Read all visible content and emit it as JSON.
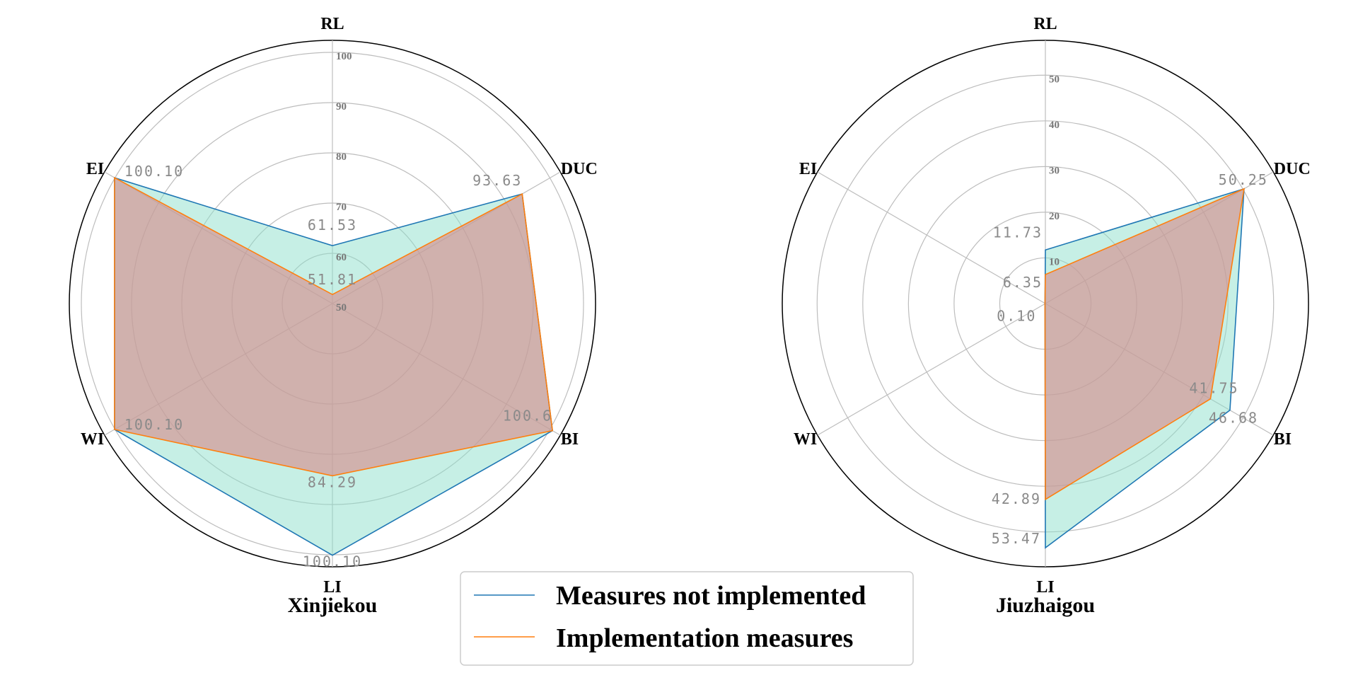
{
  "chart_data": [
    {
      "type": "radar",
      "title": "Xinjiekou",
      "axes": [
        "RL",
        "DUC",
        "BI",
        "LI",
        "WI",
        "EI"
      ],
      "rlim": [
        50,
        100
      ],
      "rticks": [
        50,
        60,
        70,
        80,
        90,
        100
      ],
      "series": [
        {
          "name": "Measures not implemented",
          "values": [
            61.53,
            93.63,
            100.6,
            100.1,
            100.1,
            100.1
          ],
          "labels": [
            "61.53",
            "93.63",
            "100.6",
            "100.10",
            "100.10",
            "100.10"
          ],
          "color": "#1f77b4",
          "fill": "#8ee0cc"
        },
        {
          "name": "Implementation measures",
          "values": [
            51.81,
            93.63,
            100.6,
            84.29,
            100.1,
            100.1
          ],
          "labels": [
            "51.81",
            "",
            "",
            "84.29",
            "",
            ""
          ],
          "color": "#ff7f0e",
          "fill": "#d68a8a"
        }
      ]
    },
    {
      "type": "radar",
      "title": "Jiuzhaigou",
      "axes": [
        "RL",
        "DUC",
        "BI",
        "LI",
        "WI",
        "EI"
      ],
      "rlim": [
        0,
        55
      ],
      "rticks": [
        10,
        20,
        30,
        40,
        50
      ],
      "series": [
        {
          "name": "Measures not implemented",
          "values": [
            11.73,
            50.25,
            46.68,
            53.47,
            0.1,
            0.1
          ],
          "labels": [
            "11.73",
            "50.25",
            "46.68",
            "53.47",
            "0.10",
            ""
          ],
          "color": "#1f77b4",
          "fill": "#8ee0cc"
        },
        {
          "name": "Implementation measures",
          "values": [
            6.35,
            50.25,
            41.75,
            42.89,
            0.1,
            0.1
          ],
          "labels": [
            "6.35",
            "",
            "41.75",
            "42.89",
            "",
            ""
          ],
          "color": "#ff7f0e",
          "fill": "#d68a8a"
        }
      ]
    }
  ],
  "legend": {
    "items": [
      {
        "label": "Measures not implemented",
        "color": "#1f77b4"
      },
      {
        "label": "Implementation measures",
        "color": "#ff7f0e"
      }
    ]
  }
}
